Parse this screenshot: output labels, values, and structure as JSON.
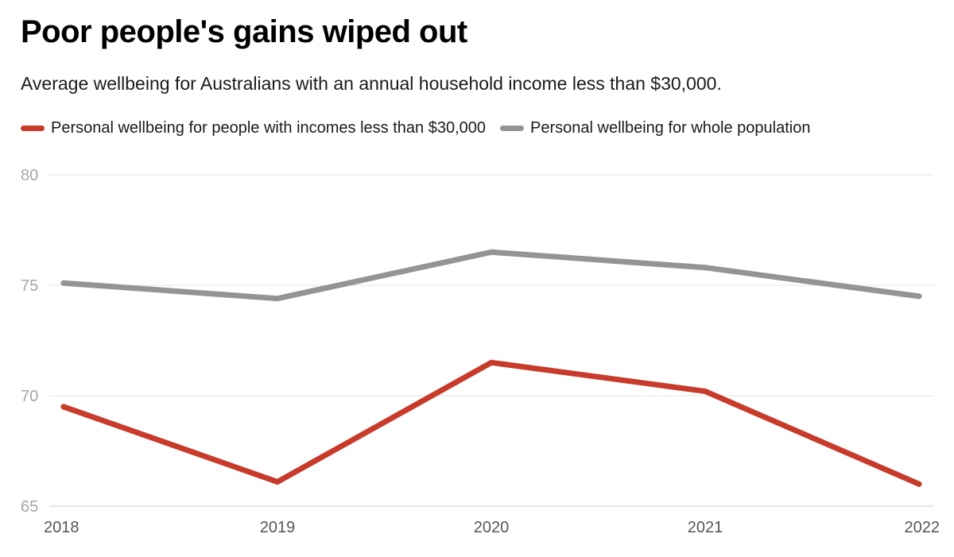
{
  "chart_data": {
    "type": "line",
    "title": "Poor people's gains wiped out",
    "subtitle": "Average wellbeing for Australians with an annual household income less than $30,000.",
    "categories": [
      "2018",
      "2019",
      "2020",
      "2021",
      "2022"
    ],
    "series": [
      {
        "name": "Personal wellbeing for people with incomes less than $30,000",
        "color": "#c83b2b",
        "values": [
          69.5,
          66.1,
          71.5,
          70.2,
          66.0
        ]
      },
      {
        "name": "Personal wellbeing for whole population",
        "color": "#949494",
        "values": [
          75.1,
          74.4,
          76.5,
          75.8,
          74.5
        ]
      }
    ],
    "ylim": [
      65,
      80
    ],
    "yticks": [
      "65",
      "70",
      "75",
      "80"
    ],
    "grid": true,
    "legend_position": "top-left",
    "xlabel": "",
    "ylabel": ""
  }
}
